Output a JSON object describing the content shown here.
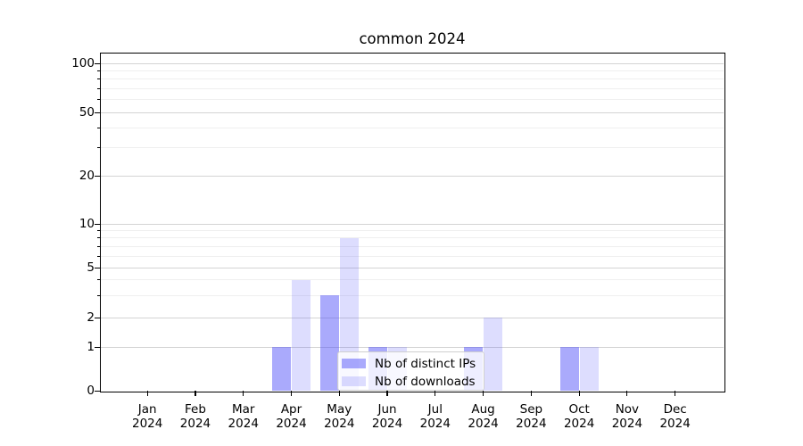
{
  "chart_data": {
    "type": "bar",
    "title": "common 2024",
    "year_label": "2024",
    "months": [
      "Jan",
      "Feb",
      "Mar",
      "Apr",
      "May",
      "Jun",
      "Jul",
      "Aug",
      "Sep",
      "Oct",
      "Nov",
      "Dec"
    ],
    "series": [
      {
        "name": "Nb of distinct IPs",
        "color": "rgba(75,75,248,0.47)",
        "values": [
          0,
          0,
          0,
          1,
          3,
          1,
          0,
          1,
          0,
          1,
          0,
          0
        ]
      },
      {
        "name": "Nb of downloads",
        "color": "rgba(75,75,248,0.19)",
        "values": [
          0,
          0,
          0,
          4,
          8,
          1,
          0,
          2,
          0,
          1,
          0,
          0
        ]
      }
    ],
    "yscale": "symlog",
    "ylim": [
      0,
      100
    ],
    "y_ticks": [
      0,
      1,
      2,
      5,
      10,
      20,
      50,
      100
    ],
    "y_minor_ticks": [
      3,
      4,
      6,
      7,
      8,
      9,
      30,
      40,
      60,
      70,
      80,
      90
    ],
    "xlabel": "",
    "ylabel": "",
    "grid": "horizontal",
    "legend_position": "lower center",
    "colors": {
      "grid_major": "#d4d4d4",
      "grid_minor": "#efefef",
      "axis": "#000000",
      "legend_border": "#cfcfcf",
      "background": "#ffffff"
    }
  }
}
